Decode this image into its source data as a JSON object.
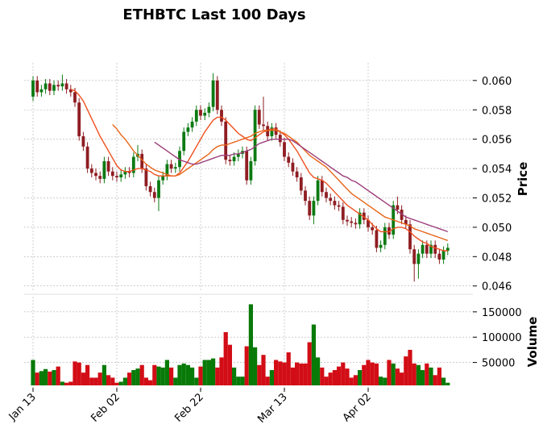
{
  "chart_data": {
    "type": "candlestick",
    "title": "ETHBTC Last 100 Days",
    "ylabel": "Price",
    "categories": [
      "Jan 13",
      null,
      null,
      null,
      null,
      null,
      null,
      null,
      null,
      null,
      null,
      null,
      null,
      null,
      null,
      null,
      null,
      null,
      null,
      null,
      "Feb 02",
      null,
      null,
      null,
      null,
      null,
      null,
      null,
      null,
      null,
      null,
      null,
      null,
      null,
      null,
      null,
      null,
      null,
      null,
      null,
      "Feb 22",
      null,
      null,
      null,
      null,
      null,
      null,
      null,
      null,
      null,
      null,
      null,
      null,
      null,
      null,
      null,
      null,
      null,
      null,
      null,
      "Mar 13",
      null,
      null,
      null,
      null,
      null,
      null,
      null,
      null,
      null,
      null,
      null,
      null,
      null,
      null,
      null,
      null,
      null,
      null,
      null,
      "Apr 02",
      null,
      null,
      null,
      null,
      null,
      null,
      null,
      null,
      null,
      null,
      null,
      null,
      null,
      null,
      null,
      null,
      null,
      null,
      null
    ],
    "open": [
      0.0589,
      0.06,
      0.0592,
      0.0594,
      0.0598,
      0.0593,
      0.0597,
      0.0596,
      0.0598,
      0.0594,
      0.0592,
      0.0585,
      0.0562,
      0.0555,
      0.054,
      0.0537,
      0.0535,
      0.0533,
      0.0545,
      0.0538,
      0.0535,
      0.0534,
      0.0536,
      0.0538,
      0.0537,
      0.0548,
      0.055,
      0.054,
      0.0528,
      0.0524,
      0.052,
      0.0532,
      0.0535,
      0.0543,
      0.054,
      0.0541,
      0.0552,
      0.0565,
      0.0568,
      0.0572,
      0.058,
      0.0576,
      0.0578,
      0.0582,
      0.06,
      0.058,
      0.0572,
      0.0546,
      0.0545,
      0.0548,
      0.055,
      0.0552,
      0.0532,
      0.0545,
      0.058,
      0.057,
      0.0569,
      0.0562,
      0.0568,
      0.0563,
      0.0558,
      0.0548,
      0.0544,
      0.0538,
      0.0534,
      0.0525,
      0.0518,
      0.0508,
      0.0518,
      0.0532,
      0.0524,
      0.052,
      0.0518,
      0.0515,
      0.0514,
      0.0505,
      0.0504,
      0.0503,
      0.0502,
      0.051,
      0.0505,
      0.05,
      0.0498,
      0.0486,
      0.0488,
      0.05,
      0.0495,
      0.0515,
      0.0512,
      0.0505,
      0.0502,
      0.0485,
      0.0475,
      0.0482,
      0.0488,
      0.0482,
      0.0488,
      0.0482,
      0.0478,
      0.0484
    ],
    "high": [
      0.0603,
      0.0603,
      0.0597,
      0.0601,
      0.0601,
      0.06,
      0.06,
      0.0604,
      0.0601,
      0.0597,
      0.0595,
      0.0588,
      0.0565,
      0.0558,
      0.0543,
      0.054,
      0.0538,
      0.0548,
      0.0548,
      0.0541,
      0.0538,
      0.0539,
      0.0541,
      0.0541,
      0.0551,
      0.0556,
      0.0553,
      0.0543,
      0.0531,
      0.0527,
      0.0535,
      0.0538,
      0.0546,
      0.0546,
      0.0544,
      0.0555,
      0.0568,
      0.0571,
      0.0575,
      0.0583,
      0.0583,
      0.0581,
      0.0585,
      0.0605,
      0.0603,
      0.0583,
      0.0575,
      0.0549,
      0.0551,
      0.0553,
      0.0555,
      0.0555,
      0.0548,
      0.0583,
      0.0583,
      0.0589,
      0.0572,
      0.0571,
      0.0571,
      0.0566,
      0.0561,
      0.0551,
      0.0547,
      0.0541,
      0.0537,
      0.0528,
      0.0521,
      0.0521,
      0.0535,
      0.0535,
      0.0527,
      0.0523,
      0.0521,
      0.0518,
      0.0517,
      0.0508,
      0.0507,
      0.0506,
      0.0513,
      0.0513,
      0.0508,
      0.0503,
      0.0501,
      0.0491,
      0.0503,
      0.0503,
      0.0518,
      0.0521,
      0.0515,
      0.0508,
      0.0505,
      0.0488,
      0.0485,
      0.0491,
      0.0491,
      0.0491,
      0.0491,
      0.0485,
      0.0487,
      0.0489
    ],
    "low": [
      0.0586,
      0.0589,
      0.0589,
      0.0591,
      0.059,
      0.059,
      0.0593,
      0.0593,
      0.0591,
      0.0589,
      0.0582,
      0.0559,
      0.0552,
      0.0537,
      0.0534,
      0.0532,
      0.053,
      0.053,
      0.0535,
      0.0532,
      0.0531,
      0.0531,
      0.0533,
      0.0534,
      0.0534,
      0.0545,
      0.0537,
      0.0525,
      0.0521,
      0.0517,
      0.0511,
      0.0529,
      0.0532,
      0.0537,
      0.0537,
      0.0538,
      0.0549,
      0.0562,
      0.0565,
      0.0569,
      0.0573,
      0.0573,
      0.0575,
      0.0579,
      0.0577,
      0.0569,
      0.0543,
      0.0542,
      0.0542,
      0.0545,
      0.0547,
      0.0529,
      0.0529,
      0.0542,
      0.0567,
      0.0566,
      0.0559,
      0.0559,
      0.056,
      0.0555,
      0.0545,
      0.0541,
      0.0535,
      0.0531,
      0.0522,
      0.0515,
      0.0505,
      0.0502,
      0.0515,
      0.0521,
      0.0517,
      0.0515,
      0.0512,
      0.0511,
      0.0502,
      0.0501,
      0.05,
      0.0499,
      0.0499,
      0.0502,
      0.0497,
      0.0495,
      0.0483,
      0.0483,
      0.0485,
      0.0492,
      0.0492,
      0.0509,
      0.0502,
      0.0499,
      0.0482,
      0.0463,
      0.0465,
      0.0479,
      0.0479,
      0.0479,
      0.0479,
      0.0475,
      0.0475,
      0.0481
    ],
    "close": [
      0.06,
      0.0592,
      0.0594,
      0.0598,
      0.0593,
      0.0597,
      0.0596,
      0.0598,
      0.0594,
      0.0592,
      0.0585,
      0.0562,
      0.0555,
      0.054,
      0.0537,
      0.0535,
      0.0533,
      0.0545,
      0.0538,
      0.0535,
      0.0534,
      0.0536,
      0.0538,
      0.0537,
      0.0548,
      0.055,
      0.054,
      0.0528,
      0.0524,
      0.052,
      0.0532,
      0.0535,
      0.0543,
      0.054,
      0.0541,
      0.0552,
      0.0565,
      0.0568,
      0.0572,
      0.058,
      0.0576,
      0.0578,
      0.0582,
      0.06,
      0.058,
      0.0572,
      0.0546,
      0.0545,
      0.0548,
      0.055,
      0.0552,
      0.0532,
      0.0545,
      0.058,
      0.057,
      0.0569,
      0.0562,
      0.0568,
      0.0563,
      0.0558,
      0.0548,
      0.0544,
      0.0538,
      0.0534,
      0.0525,
      0.0518,
      0.0508,
      0.0518,
      0.0532,
      0.0524,
      0.052,
      0.0518,
      0.0515,
      0.0514,
      0.0505,
      0.0504,
      0.0503,
      0.0502,
      0.051,
      0.0505,
      0.05,
      0.0498,
      0.0486,
      0.0488,
      0.05,
      0.0495,
      0.0515,
      0.0512,
      0.0505,
      0.0502,
      0.0485,
      0.0475,
      0.0482,
      0.0488,
      0.0482,
      0.0488,
      0.0482,
      0.0478,
      0.0484,
      0.0486
    ],
    "up_color": "#0b7a12",
    "down_color": "#8e1d22",
    "ylim": [
      0.0456,
      0.0612
    ],
    "yticks": [
      0.046,
      0.048,
      {
        "value": 0.05,
        "label": "0.050"
      },
      0.052,
      0.054,
      0.056,
      0.058,
      {
        "value": 0.06,
        "label": "0.060"
      }
    ],
    "grid": true,
    "moving_averages": [
      {
        "color": "#f0501e",
        "values": [
          null,
          null,
          null,
          null,
          null,
          null,
          null,
          null,
          null,
          0.0594,
          0.0593,
          0.059,
          0.0586,
          0.058,
          0.0574,
          0.0568,
          0.0562,
          0.0557,
          0.0552,
          0.0547,
          0.0542,
          0.0539,
          0.0538,
          0.0538,
          0.0539,
          0.054,
          0.054,
          0.0539,
          0.0538,
          0.0536,
          0.0535,
          0.0535,
          0.0535,
          0.0535,
          0.0535,
          0.0537,
          0.0541,
          0.0545,
          0.055,
          0.0555,
          0.056,
          0.0565,
          0.0569,
          0.0573,
          0.0575,
          0.0575,
          0.0573,
          0.057,
          0.0567,
          0.0564,
          0.0562,
          0.056,
          0.0559,
          0.0561,
          0.0563,
          0.0565,
          0.0566,
          0.0567,
          0.0567,
          0.0565,
          0.0563,
          0.056,
          0.0556,
          0.0552,
          0.0547,
          0.0542,
          0.0537,
          0.0534,
          0.0533,
          0.0532,
          0.053,
          0.0527,
          0.0524,
          0.0521,
          0.0518,
          0.0515,
          0.0513,
          0.0511,
          0.0509,
          0.0507,
          0.0505,
          0.0502,
          0.0499,
          0.0497,
          0.0497,
          0.0497,
          0.0499,
          0.05,
          0.05,
          0.0499,
          0.0497,
          0.0494,
          0.0492,
          0.049,
          0.0489,
          0.0487,
          0.0486,
          0.0485,
          0.0484,
          0.0484
        ]
      },
      {
        "color": "#e86418",
        "values": [
          null,
          null,
          null,
          null,
          null,
          null,
          null,
          null,
          null,
          null,
          null,
          null,
          null,
          null,
          null,
          null,
          null,
          null,
          null,
          0.057,
          0.0567,
          0.0563,
          0.056,
          0.0556,
          0.0552,
          0.0549,
          0.0546,
          0.0543,
          0.0541,
          0.0539,
          0.0538,
          0.0537,
          0.0536,
          0.0535,
          0.0535,
          0.0536,
          0.0538,
          0.054,
          0.0542,
          0.0544,
          0.0546,
          0.0548,
          0.055,
          0.0553,
          0.0555,
          0.0556,
          0.0556,
          0.0557,
          0.0558,
          0.0559,
          0.056,
          0.0561,
          0.0562,
          0.0564,
          0.0565,
          0.0566,
          0.0566,
          0.0566,
          0.0566,
          0.0565,
          0.0564,
          0.0562,
          0.056,
          0.0558,
          0.0555,
          0.0552,
          0.0549,
          0.0547,
          0.0545,
          0.0543,
          0.0541,
          0.0538,
          0.0535,
          0.0532,
          0.0529,
          0.0526,
          0.0523,
          0.0521,
          0.0519,
          0.0517,
          0.0515,
          0.0513,
          0.0511,
          0.0509,
          0.0507,
          0.0506,
          0.0505,
          0.0504,
          0.0503,
          0.0502,
          0.0501,
          0.0499,
          0.0498,
          0.0497,
          0.0496,
          0.0495,
          0.0494,
          0.0493,
          0.0492,
          0.0491
        ]
      },
      {
        "color": "#9c3d7a",
        "values": [
          null,
          null,
          null,
          null,
          null,
          null,
          null,
          null,
          null,
          null,
          null,
          null,
          null,
          null,
          null,
          null,
          null,
          null,
          null,
          null,
          null,
          null,
          null,
          null,
          null,
          null,
          null,
          null,
          null,
          0.0558,
          0.0556,
          0.0554,
          0.0552,
          0.055,
          0.0548,
          0.0546,
          0.0545,
          0.0544,
          0.0543,
          0.0543,
          0.0544,
          0.0545,
          0.0546,
          0.0547,
          0.0548,
          0.0549,
          0.0549,
          0.0549,
          0.055,
          0.055,
          0.0551,
          0.0552,
          0.0553,
          0.0555,
          0.0557,
          0.0558,
          0.0559,
          0.056,
          0.056,
          0.056,
          0.056,
          0.056,
          0.0559,
          0.0557,
          0.0555,
          0.0553,
          0.0551,
          0.0549,
          0.0547,
          0.0545,
          0.0543,
          0.0541,
          0.0539,
          0.0537,
          0.0535,
          0.0534,
          0.0532,
          0.0531,
          0.0529,
          0.0527,
          0.0525,
          0.0523,
          0.0521,
          0.0519,
          0.0517,
          0.0515,
          0.0513,
          0.0511,
          0.0509,
          0.0507,
          0.0506,
          0.0505,
          0.0504,
          0.0503,
          0.0502,
          0.0501,
          0.05,
          0.0499,
          0.0498,
          0.0497
        ]
      }
    ],
    "volume": {
      "ylabel": "Volume",
      "up_color": "#087a08",
      "down_color": "#d20d16",
      "ylim": [
        0,
        180000
      ],
      "yticks": [
        50000,
        100000,
        150000
      ],
      "values": [
        55000,
        30000,
        33000,
        37000,
        32000,
        35000,
        42000,
        12000,
        10000,
        12000,
        52000,
        50000,
        30000,
        45000,
        20000,
        20000,
        30000,
        45000,
        25000,
        20000,
        10000,
        12000,
        20000,
        30000,
        35000,
        38000,
        45000,
        20000,
        15000,
        45000,
        42000,
        40000,
        55000,
        40000,
        20000,
        45000,
        48000,
        45000,
        40000,
        20000,
        42000,
        55000,
        55000,
        58000,
        40000,
        60000,
        110000,
        85000,
        40000,
        22000,
        22000,
        82000,
        165000,
        80000,
        45000,
        65000,
        22000,
        35000,
        55000,
        52000,
        50000,
        70000,
        40000,
        50000,
        48000,
        48000,
        90000,
        125000,
        60000,
        40000,
        22000,
        30000,
        35000,
        42000,
        50000,
        38000,
        20000,
        25000,
        35000,
        45000,
        55000,
        50000,
        48000,
        22000,
        20000,
        55000,
        48000,
        38000,
        30000,
        62000,
        75000,
        48000,
        45000,
        35000,
        48000,
        40000,
        25000,
        40000,
        20000,
        10000
      ]
    }
  }
}
